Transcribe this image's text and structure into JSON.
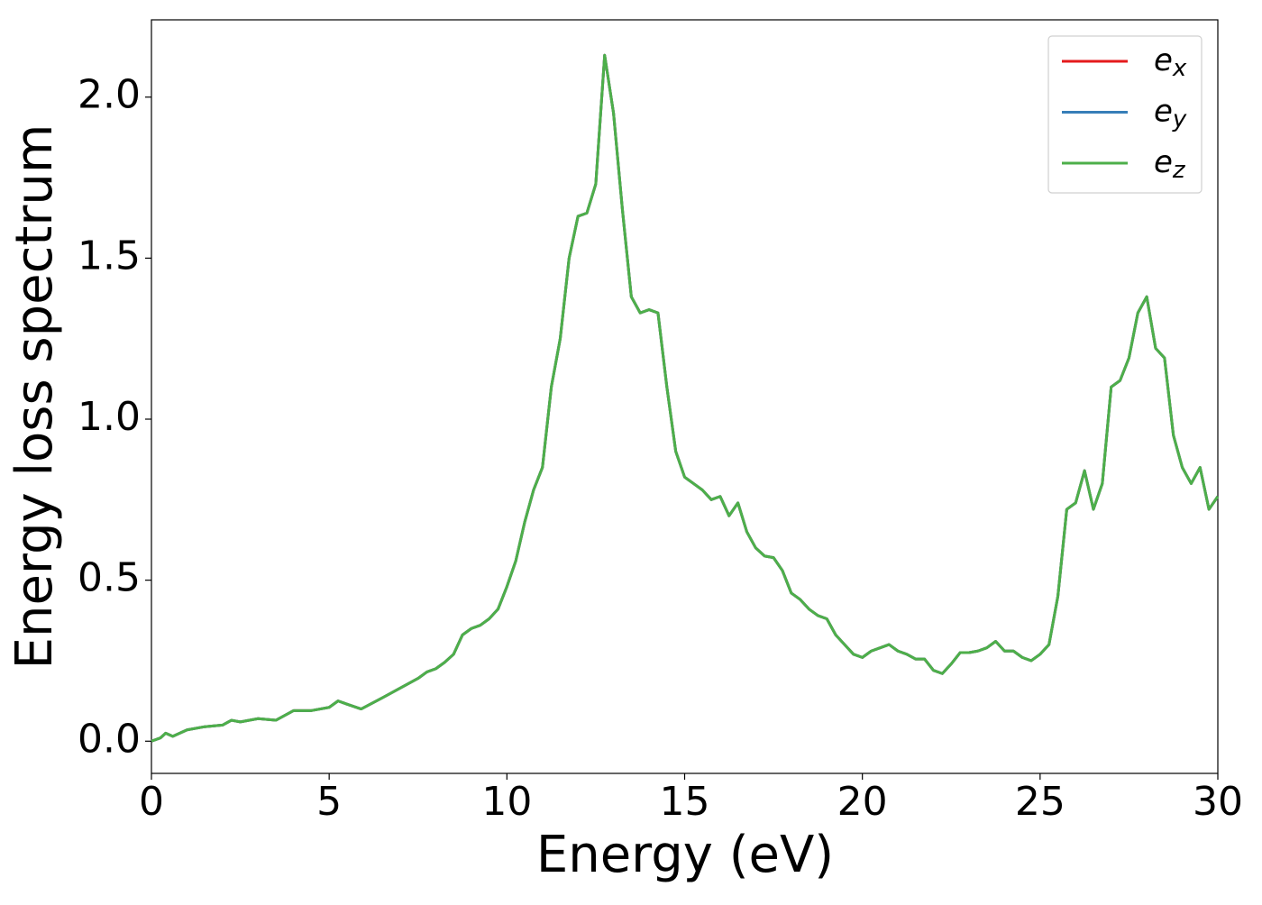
{
  "chart_data": {
    "type": "line",
    "xlabel": "Energy (eV)",
    "ylabel": "Energy loss spectrum",
    "x": [
      0,
      0.25,
      0.4,
      0.6,
      1,
      1.5,
      2,
      2.25,
      2.5,
      3,
      3.5,
      4,
      4.5,
      5,
      5.25,
      5.5,
      5.9,
      6.5,
      7,
      7.5,
      7.75,
      8,
      8.25,
      8.5,
      8.75,
      9,
      9.25,
      9.5,
      9.75,
      10,
      10.25,
      10.5,
      10.75,
      11,
      11.25,
      11.5,
      11.75,
      12,
      12.25,
      12.5,
      12.75,
      13,
      13.25,
      13.5,
      13.75,
      14,
      14.25,
      14.5,
      14.75,
      15,
      15.25,
      15.5,
      15.75,
      16,
      16.25,
      16.5,
      16.75,
      17,
      17.25,
      17.5,
      17.75,
      18,
      18.25,
      18.5,
      18.75,
      19,
      19.25,
      19.5,
      19.75,
      20,
      20.25,
      20.5,
      20.75,
      21,
      21.25,
      21.5,
      21.75,
      22,
      22.25,
      22.5,
      22.75,
      23,
      23.25,
      23.5,
      23.75,
      24,
      24.25,
      24.5,
      24.75,
      25,
      25.25,
      25.5,
      25.75,
      26,
      26.25,
      26.5,
      26.75,
      27,
      27.25,
      27.5,
      27.75,
      28,
      28.25,
      28.5,
      28.75,
      29,
      29.25,
      29.5,
      29.75,
      30
    ],
    "series": [
      {
        "name": "ex",
        "color": "#e41a1c",
        "values": [
          0,
          0.01,
          0.025,
          0.015,
          0.035,
          0.045,
          0.05,
          0.065,
          0.06,
          0.07,
          0.065,
          0.095,
          0.095,
          0.105,
          0.125,
          0.115,
          0.1,
          0.135,
          0.165,
          0.195,
          0.215,
          0.225,
          0.245,
          0.27,
          0.33,
          0.35,
          0.36,
          0.38,
          0.41,
          0.48,
          0.56,
          0.68,
          0.78,
          0.85,
          1.1,
          1.25,
          1.5,
          1.63,
          1.64,
          1.73,
          2.13,
          1.95,
          1.65,
          1.38,
          1.33,
          1.34,
          1.33,
          1.1,
          0.9,
          0.82,
          0.8,
          0.78,
          0.75,
          0.76,
          0.7,
          0.74,
          0.65,
          0.6,
          0.575,
          0.57,
          0.53,
          0.46,
          0.44,
          0.41,
          0.39,
          0.38,
          0.33,
          0.3,
          0.27,
          0.26,
          0.28,
          0.29,
          0.3,
          0.28,
          0.27,
          0.255,
          0.255,
          0.22,
          0.21,
          0.24,
          0.275,
          0.275,
          0.28,
          0.29,
          0.31,
          0.28,
          0.28,
          0.26,
          0.25,
          0.27,
          0.3,
          0.45,
          0.72,
          0.74,
          0.84,
          0.72,
          0.8,
          1.1,
          1.12,
          1.19,
          1.33,
          1.38,
          1.22,
          1.19,
          0.95,
          0.85,
          0.8,
          0.85,
          0.72,
          0.76
        ]
      },
      {
        "name": "ey",
        "color": "#377eb8",
        "values": [
          0,
          0.01,
          0.025,
          0.015,
          0.035,
          0.045,
          0.05,
          0.065,
          0.06,
          0.07,
          0.065,
          0.095,
          0.095,
          0.105,
          0.125,
          0.115,
          0.1,
          0.135,
          0.165,
          0.195,
          0.215,
          0.225,
          0.245,
          0.27,
          0.33,
          0.35,
          0.36,
          0.38,
          0.41,
          0.48,
          0.56,
          0.68,
          0.78,
          0.85,
          1.1,
          1.25,
          1.5,
          1.63,
          1.64,
          1.73,
          2.13,
          1.95,
          1.65,
          1.38,
          1.33,
          1.34,
          1.33,
          1.1,
          0.9,
          0.82,
          0.8,
          0.78,
          0.75,
          0.76,
          0.7,
          0.74,
          0.65,
          0.6,
          0.575,
          0.57,
          0.53,
          0.46,
          0.44,
          0.41,
          0.39,
          0.38,
          0.33,
          0.3,
          0.27,
          0.26,
          0.28,
          0.29,
          0.3,
          0.28,
          0.27,
          0.255,
          0.255,
          0.22,
          0.21,
          0.24,
          0.275,
          0.275,
          0.28,
          0.29,
          0.31,
          0.28,
          0.28,
          0.26,
          0.25,
          0.27,
          0.3,
          0.45,
          0.72,
          0.74,
          0.84,
          0.72,
          0.8,
          1.1,
          1.12,
          1.19,
          1.33,
          1.38,
          1.22,
          1.19,
          0.95,
          0.85,
          0.8,
          0.85,
          0.72,
          0.76
        ]
      },
      {
        "name": "ez",
        "color": "#4daf4a",
        "values": [
          0,
          0.01,
          0.025,
          0.015,
          0.035,
          0.045,
          0.05,
          0.065,
          0.06,
          0.07,
          0.065,
          0.095,
          0.095,
          0.105,
          0.125,
          0.115,
          0.1,
          0.135,
          0.165,
          0.195,
          0.215,
          0.225,
          0.245,
          0.27,
          0.33,
          0.35,
          0.36,
          0.38,
          0.41,
          0.48,
          0.56,
          0.68,
          0.78,
          0.85,
          1.1,
          1.25,
          1.5,
          1.63,
          1.64,
          1.73,
          2.13,
          1.95,
          1.65,
          1.38,
          1.33,
          1.34,
          1.33,
          1.1,
          0.9,
          0.82,
          0.8,
          0.78,
          0.75,
          0.76,
          0.7,
          0.74,
          0.65,
          0.6,
          0.575,
          0.57,
          0.53,
          0.46,
          0.44,
          0.41,
          0.39,
          0.38,
          0.33,
          0.3,
          0.27,
          0.26,
          0.28,
          0.29,
          0.3,
          0.28,
          0.27,
          0.255,
          0.255,
          0.22,
          0.21,
          0.24,
          0.275,
          0.275,
          0.28,
          0.29,
          0.31,
          0.28,
          0.28,
          0.26,
          0.25,
          0.27,
          0.3,
          0.45,
          0.72,
          0.74,
          0.84,
          0.72,
          0.8,
          1.1,
          1.12,
          1.19,
          1.33,
          1.38,
          1.22,
          1.19,
          0.95,
          0.85,
          0.8,
          0.85,
          0.72,
          0.76
        ]
      }
    ],
    "xlim": [
      0,
      30
    ],
    "xticks": [
      0,
      5,
      10,
      15,
      20,
      25,
      30
    ],
    "ylim": [
      -0.1,
      2.24
    ],
    "yticks": [
      {
        "value": 0,
        "label": "0.0"
      },
      {
        "value": 0.5,
        "label": "0.5"
      },
      {
        "value": 1,
        "label": "1.0"
      },
      {
        "value": 1.5,
        "label": "1.5"
      },
      {
        "value": 2,
        "label": "2.0"
      }
    ],
    "grid": false,
    "legend": "upper right"
  }
}
